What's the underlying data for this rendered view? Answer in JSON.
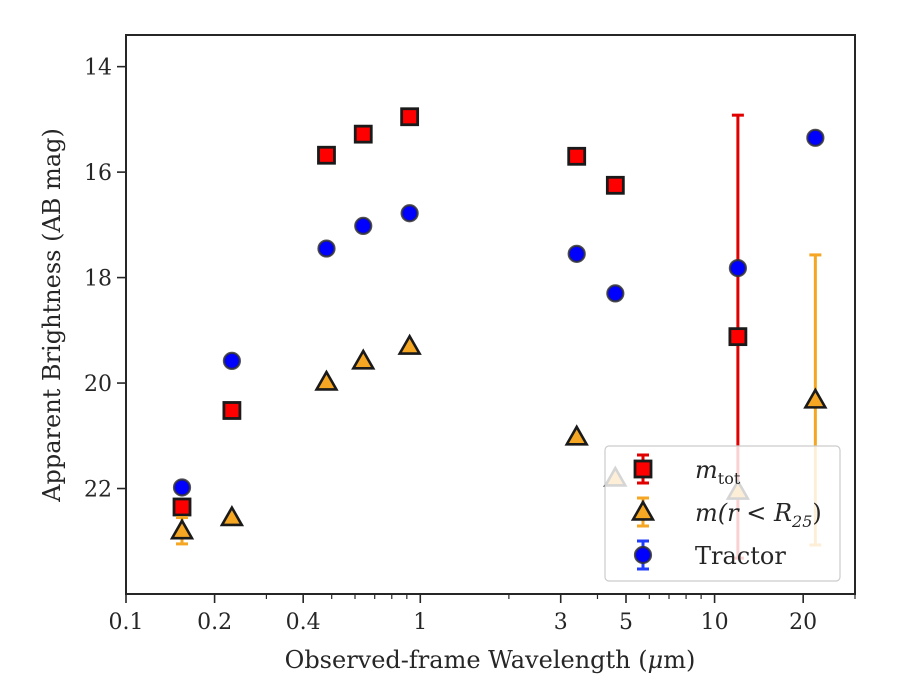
{
  "chart_data": {
    "type": "scatter",
    "xlabel_parts": [
      "Observed-frame Wavelength (",
      "μ",
      "m)"
    ],
    "ylabel": "Apparent Brightness (AB mag)",
    "xscale": "log",
    "xlim": [
      0.1,
      30
    ],
    "ylim": [
      24,
      13.4
    ],
    "y_inverted": true,
    "grid": false,
    "legend_position": "lower-right",
    "x_ticks": [
      {
        "value": 0.1,
        "label": "0.1"
      },
      {
        "value": 0.2,
        "label": "0.2"
      },
      {
        "value": 0.4,
        "label": "0.4"
      },
      {
        "value": 1,
        "label": "1"
      },
      {
        "value": 3,
        "label": "3"
      },
      {
        "value": 5,
        "label": "5"
      },
      {
        "value": 10,
        "label": "10"
      },
      {
        "value": 20,
        "label": "20"
      }
    ],
    "y_ticks": [
      {
        "value": 14,
        "label": "14"
      },
      {
        "value": 16,
        "label": "16"
      },
      {
        "value": 18,
        "label": "18"
      },
      {
        "value": 20,
        "label": "20"
      },
      {
        "value": 22,
        "label": "22"
      }
    ],
    "series": [
      {
        "key": "mtot",
        "legend_main": "m",
        "legend_sub": "tot",
        "marker": "square",
        "color": "#ff0000",
        "edge": "#1a1a1a",
        "err_color": "#e00000",
        "points": [
          {
            "x": 0.155,
            "y": 22.35,
            "err": 0.0
          },
          {
            "x": 0.229,
            "y": 20.52,
            "err": 0.0
          },
          {
            "x": 0.48,
            "y": 15.68,
            "err": 0.0
          },
          {
            "x": 0.64,
            "y": 15.28,
            "err": 0.0
          },
          {
            "x": 0.92,
            "y": 14.95,
            "err": 0.0
          },
          {
            "x": 3.4,
            "y": 15.7,
            "err": 0.0
          },
          {
            "x": 4.6,
            "y": 16.25,
            "err": 0.0
          },
          {
            "x": 12.0,
            "y": 19.12,
            "err": 4.2
          }
        ]
      },
      {
        "key": "mr25",
        "legend_main": "m(r < R",
        "legend_sub": "25",
        "legend_end": ")",
        "marker": "triangle",
        "color": "#f5a623",
        "edge": "#1a1a1a",
        "err_color": "#f5a623",
        "points": [
          {
            "x": 0.155,
            "y": 22.8,
            "err": 0.25
          },
          {
            "x": 0.229,
            "y": 22.55,
            "err": 0.0
          },
          {
            "x": 0.48,
            "y": 19.98,
            "err": 0.0
          },
          {
            "x": 0.64,
            "y": 19.58,
            "err": 0.0
          },
          {
            "x": 0.92,
            "y": 19.3,
            "err": 0.0
          },
          {
            "x": 3.4,
            "y": 21.02,
            "err": 0.0
          },
          {
            "x": 4.6,
            "y": 21.8,
            "err": 0.0
          },
          {
            "x": 12.0,
            "y": 22.05,
            "err": 0.0
          },
          {
            "x": 22.0,
            "y": 20.32,
            "err": 2.75
          }
        ]
      },
      {
        "key": "tractor",
        "legend_main": "Tractor",
        "marker": "circle",
        "color": "#0000ff",
        "edge": "#333333",
        "err_color": "#1f3cff",
        "points": [
          {
            "x": 0.155,
            "y": 21.98,
            "err": 0.0
          },
          {
            "x": 0.229,
            "y": 19.58,
            "err": 0.0
          },
          {
            "x": 0.48,
            "y": 17.45,
            "err": 0.0
          },
          {
            "x": 0.64,
            "y": 17.02,
            "err": 0.0
          },
          {
            "x": 0.92,
            "y": 16.78,
            "err": 0.0
          },
          {
            "x": 3.4,
            "y": 17.55,
            "err": 0.0
          },
          {
            "x": 4.6,
            "y": 18.3,
            "err": 0.0
          },
          {
            "x": 12.0,
            "y": 17.82,
            "err": 0.0
          },
          {
            "x": 22.0,
            "y": 15.35,
            "err": 0.0
          }
        ]
      }
    ]
  }
}
